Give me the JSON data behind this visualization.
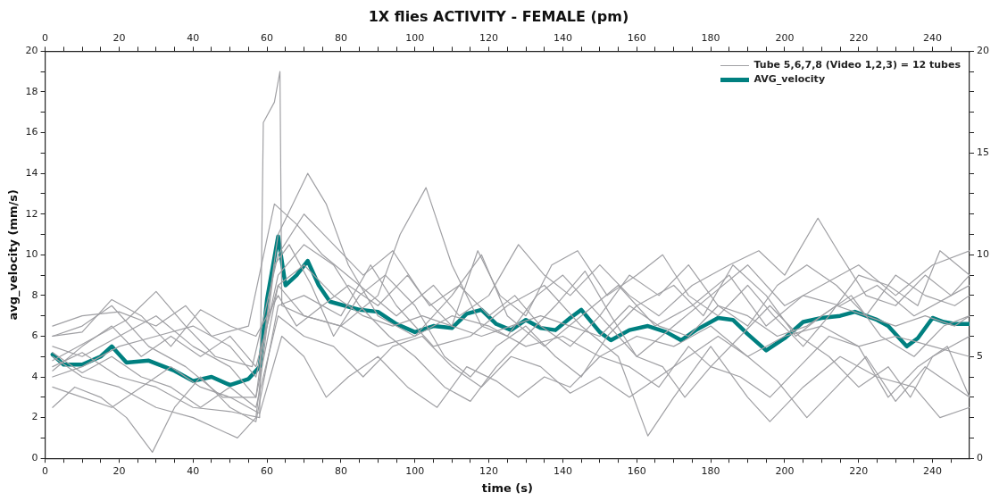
{
  "chart_data": {
    "type": "line",
    "title": "1X flies ACTIVITY - FEMALE (pm)",
    "xlabel": "time (s)",
    "ylabel": "avg_velocity (mm/s)",
    "xlim": [
      0,
      250
    ],
    "x2lim": [
      0,
      250
    ],
    "ylim": [
      0,
      20
    ],
    "y2lim": [
      0,
      20
    ],
    "xticks": [
      0,
      {
        "value": 5,
        "label": null
      },
      {
        "value": 10,
        "label": null
      },
      {
        "value": 15,
        "label": null
      },
      20,
      {
        "value": 25,
        "label": null
      },
      {
        "value": 30,
        "label": null
      },
      {
        "value": 35,
        "label": null
      },
      40,
      {
        "value": 45,
        "label": null
      },
      {
        "value": 50,
        "label": null
      },
      {
        "value": 55,
        "label": null
      },
      60,
      {
        "value": 65,
        "label": null
      },
      {
        "value": 70,
        "label": null
      },
      {
        "value": 75,
        "label": null
      },
      80,
      {
        "value": 85,
        "label": null
      },
      {
        "value": 90,
        "label": null
      },
      {
        "value": 95,
        "label": null
      },
      100,
      {
        "value": 105,
        "label": null
      },
      {
        "value": 110,
        "label": null
      },
      {
        "value": 115,
        "label": null
      },
      120,
      {
        "value": 125,
        "label": null
      },
      {
        "value": 130,
        "label": null
      },
      {
        "value": 135,
        "label": null
      },
      140,
      {
        "value": 145,
        "label": null
      },
      {
        "value": 150,
        "label": null
      },
      {
        "value": 155,
        "label": null
      },
      160,
      {
        "value": 165,
        "label": null
      },
      {
        "value": 170,
        "label": null
      },
      {
        "value": 175,
        "label": null
      },
      180,
      {
        "value": 185,
        "label": null
      },
      {
        "value": 190,
        "label": null
      },
      {
        "value": 195,
        "label": null
      },
      200,
      {
        "value": 205,
        "label": null
      },
      {
        "value": 210,
        "label": null
      },
      {
        "value": 215,
        "label": null
      },
      220,
      {
        "value": 225,
        "label": null
      },
      {
        "value": 230,
        "label": null
      },
      {
        "value": 235,
        "label": null
      },
      240,
      {
        "value": 245,
        "label": null
      }
    ],
    "x2ticks": [
      0,
      {
        "value": 5,
        "label": null
      },
      {
        "value": 10,
        "label": null
      },
      {
        "value": 15,
        "label": null
      },
      20,
      {
        "value": 25,
        "label": null
      },
      {
        "value": 30,
        "label": null
      },
      {
        "value": 35,
        "label": null
      },
      40,
      {
        "value": 45,
        "label": null
      },
      {
        "value": 50,
        "label": null
      },
      {
        "value": 55,
        "label": null
      },
      60,
      {
        "value": 65,
        "label": null
      },
      {
        "value": 70,
        "label": null
      },
      {
        "value": 75,
        "label": null
      },
      80,
      {
        "value": 85,
        "label": null
      },
      {
        "value": 90,
        "label": null
      },
      {
        "value": 95,
        "label": null
      },
      100,
      {
        "value": 105,
        "label": null
      },
      {
        "value": 110,
        "label": null
      },
      {
        "value": 115,
        "label": null
      },
      120,
      {
        "value": 125,
        "label": null
      },
      {
        "value": 130,
        "label": null
      },
      {
        "value": 135,
        "label": null
      },
      140,
      {
        "value": 145,
        "label": null
      },
      {
        "value": 150,
        "label": null
      },
      {
        "value": 155,
        "label": null
      },
      160,
      {
        "value": 165,
        "label": null
      },
      {
        "value": 170,
        "label": null
      },
      {
        "value": 175,
        "label": null
      },
      180,
      {
        "value": 185,
        "label": null
      },
      {
        "value": 190,
        "label": null
      },
      {
        "value": 195,
        "label": null
      },
      200,
      {
        "value": 205,
        "label": null
      },
      {
        "value": 210,
        "label": null
      },
      {
        "value": 215,
        "label": null
      },
      220,
      {
        "value": 225,
        "label": null
      },
      {
        "value": 230,
        "label": null
      },
      {
        "value": 235,
        "label": null
      },
      240,
      {
        "value": 245,
        "label": null
      }
    ],
    "yticks": [
      0,
      {
        "value": 1,
        "label": null
      },
      2,
      {
        "value": 3,
        "label": null
      },
      4,
      {
        "value": 5,
        "label": null
      },
      6,
      {
        "value": 7,
        "label": null
      },
      8,
      {
        "value": 9,
        "label": null
      },
      10,
      {
        "value": 11,
        "label": null
      },
      12,
      {
        "value": 13,
        "label": null
      },
      14,
      {
        "value": 15,
        "label": null
      },
      16,
      {
        "value": 17,
        "label": null
      },
      18,
      {
        "value": 19,
        "label": null
      },
      20
    ],
    "y2ticks": [
      0,
      {
        "value": 1,
        "label": null
      },
      {
        "value": 2,
        "label": null
      },
      {
        "value": 3,
        "label": null
      },
      {
        "value": 4,
        "label": null
      },
      5,
      {
        "value": 6,
        "label": null
      },
      {
        "value": 7,
        "label": null
      },
      {
        "value": 8,
        "label": null
      },
      {
        "value": 9,
        "label": null
      },
      10,
      {
        "value": 11,
        "label": null
      },
      {
        "value": 12,
        "label": null
      },
      {
        "value": 13,
        "label": null
      },
      {
        "value": 14,
        "label": null
      },
      15,
      {
        "value": 16,
        "label": null
      },
      {
        "value": 17,
        "label": null
      },
      {
        "value": 18,
        "label": null
      },
      {
        "value": 19,
        "label": null
      },
      20
    ],
    "legend": "top right",
    "marker": "none",
    "line_style": "solid",
    "series": [
      {
        "name": "Tube 5,6,7,8 (Video 1,2,3) = 12 tubes",
        "color": "#a0a0a4",
        "x": [
          2,
          10,
          20,
          30,
          40,
          50,
          58,
          59,
          62,
          63.5,
          64,
          70,
          80,
          90,
          100,
          110,
          120,
          130,
          140,
          150,
          160,
          170,
          180,
          190,
          200,
          210,
          220,
          230,
          240,
          250
        ],
        "values": [
          4.5,
          5.2,
          4.0,
          3.5,
          2.5,
          2.3,
          2.0,
          16.5,
          17.5,
          19.0,
          7.5,
          7.0,
          6.5,
          5.5,
          6.0,
          7.0,
          6.5,
          5.5,
          6.0,
          5.0,
          6.0,
          5.5,
          6.5,
          5.0,
          6.0,
          6.5,
          5.5,
          6.0,
          5.5,
          5.0
        ]
      },
      {
        "color": "#a0a0a4",
        "x": [
          2,
          10,
          18,
          28,
          38,
          48,
          57,
          63,
          71,
          76,
          82,
          90,
          100,
          110,
          118,
          125,
          135,
          145,
          155,
          165,
          175,
          185,
          195,
          205,
          215,
          225,
          235,
          245,
          250
        ],
        "values": [
          6.0,
          6.5,
          7.5,
          5.5,
          4.5,
          3.0,
          3.0,
          11,
          14.0,
          12.5,
          9.5,
          7.0,
          6.0,
          8.0,
          10.0,
          7.0,
          5.5,
          7.0,
          8.5,
          6.5,
          7.5,
          9.0,
          6.5,
          8.0,
          7.5,
          8.5,
          7.0,
          8.0,
          8.5
        ]
      },
      {
        "color": "#a0a0a4",
        "x": [
          2,
          10,
          20,
          30,
          40,
          50,
          57,
          63,
          70,
          80,
          90,
          96,
          103,
          110,
          118,
          125,
          133,
          140,
          150,
          160,
          170,
          180,
          190,
          200,
          210,
          220,
          230,
          240,
          250
        ],
        "values": [
          5.5,
          5.0,
          6.0,
          7.0,
          5.5,
          4.5,
          3.0,
          8.5,
          7.0,
          6.5,
          8.0,
          11.0,
          13.3,
          9.5,
          6.5,
          6.0,
          8.0,
          9.0,
          7.0,
          5.0,
          6.5,
          8.0,
          9.5,
          7.5,
          8.5,
          9.5,
          8.0,
          9.5,
          10.2
        ]
      },
      {
        "color": "#a0a0a4",
        "x": [
          2,
          8,
          15,
          22,
          29,
          35,
          42,
          50,
          57,
          63,
          70,
          80,
          88,
          95,
          105,
          115,
          125,
          135,
          145,
          155,
          163,
          170,
          180,
          190,
          196,
          205,
          215,
          225,
          235,
          242,
          250
        ],
        "values": [
          2.5,
          3.5,
          3.0,
          2.0,
          0.3,
          2.5,
          4.0,
          2.5,
          1.8,
          7.5,
          8.0,
          7.0,
          9.5,
          7.5,
          5.5,
          6.0,
          7.5,
          8.5,
          6.5,
          5.0,
          1.1,
          3.0,
          5.5,
          3.0,
          1.8,
          3.5,
          5.0,
          4.0,
          3.5,
          2.0,
          2.5
        ]
      },
      {
        "color": "#a0a0a4",
        "x": [
          2,
          10,
          20,
          30,
          40,
          46,
          52,
          57,
          62,
          66,
          72,
          78,
          85,
          92,
          100,
          108,
          115,
          122,
          130,
          138,
          145,
          152,
          160,
          170,
          178,
          186,
          195,
          203,
          210,
          218,
          226,
          235,
          243,
          250
        ],
        "values": [
          5.0,
          4.0,
          3.5,
          2.5,
          2.0,
          1.5,
          1.0,
          2.0,
          9.5,
          10.5,
          8.5,
          6.0,
          8.0,
          9.0,
          7.5,
          5.0,
          4.0,
          5.5,
          6.5,
          5.0,
          4.0,
          6.0,
          7.5,
          8.5,
          7.0,
          9.5,
          8.0,
          6.0,
          7.0,
          8.0,
          6.0,
          5.0,
          6.5,
          7.0
        ]
      },
      {
        "color": "#a0a0a4",
        "x": [
          2,
          10,
          20,
          30,
          38,
          45,
          55,
          62,
          68,
          75,
          85,
          95,
          105,
          112,
          120,
          128,
          135,
          142,
          150,
          158,
          166,
          175,
          185,
          193,
          200,
          209,
          215,
          222,
          230,
          238,
          245,
          250
        ],
        "values": [
          6.5,
          7.0,
          7.2,
          6.5,
          7.5,
          6.0,
          6.5,
          12.5,
          11.5,
          10.0,
          8.5,
          7.0,
          8.5,
          7.0,
          8.0,
          10.5,
          9.0,
          8.0,
          9.5,
          8.0,
          7.0,
          8.5,
          9.5,
          10.2,
          9.0,
          11.8,
          10.0,
          8.0,
          7.5,
          9.0,
          8.0,
          9.0
        ]
      },
      {
        "color": "#a0a0a4",
        "x": [
          2,
          10,
          20,
          30,
          40,
          50,
          57,
          63,
          70,
          78,
          85,
          93,
          100,
          108,
          115,
          122,
          130,
          138,
          146,
          153,
          160,
          167,
          173,
          180,
          188,
          196,
          204,
          212,
          220,
          228,
          234,
          240,
          250
        ],
        "values": [
          4.0,
          4.5,
          5.5,
          6.0,
          6.5,
          5.5,
          4.0,
          9.0,
          10.5,
          9.5,
          7.5,
          6.0,
          5.0,
          3.5,
          2.8,
          4.5,
          6.0,
          7.5,
          9.2,
          7.0,
          5.0,
          4.5,
          3.0,
          4.5,
          6.0,
          7.5,
          6.0,
          5.0,
          3.5,
          4.5,
          3.0,
          5.0,
          6.0
        ]
      },
      {
        "color": "#a0a0a4",
        "x": [
          2,
          12,
          22,
          30,
          38,
          46,
          56,
          63,
          70,
          78,
          86,
          94,
          102,
          110,
          117,
          123,
          130,
          137,
          144,
          152,
          160,
          167,
          174,
          182,
          190,
          197,
          205,
          212,
          220,
          228,
          236,
          242,
          250
        ],
        "values": [
          4.8,
          5.8,
          6.8,
          8.2,
          6.5,
          5.0,
          4.5,
          10.0,
          12.0,
          10.5,
          9.0,
          10.2,
          8.0,
          6.5,
          10.2,
          8.0,
          7.0,
          9.5,
          10.2,
          8.0,
          9.0,
          10.0,
          8.0,
          7.0,
          8.5,
          7.0,
          5.5,
          7.0,
          9.0,
          8.5,
          7.5,
          10.2,
          9.0
        ]
      },
      {
        "color": "#a0a0a4",
        "x": [
          2,
          10,
          18,
          26,
          34,
          42,
          50,
          58,
          64,
          70,
          76,
          82,
          90,
          98,
          106,
          114,
          122,
          128,
          135,
          142,
          150,
          158,
          166,
          174,
          180,
          188,
          196,
          204,
          212,
          220,
          228,
          236,
          244,
          250
        ],
        "values": [
          3.5,
          3.0,
          2.5,
          3.5,
          4.5,
          3.5,
          3.0,
          2.2,
          6.0,
          5.0,
          3.0,
          4.0,
          5.0,
          3.5,
          2.5,
          4.5,
          3.8,
          3.0,
          4.0,
          3.5,
          5.0,
          4.5,
          3.5,
          5.5,
          4.5,
          4.0,
          3.0,
          4.5,
          6.0,
          5.5,
          3.0,
          4.5,
          5.5,
          3.0
        ]
      },
      {
        "color": "#a0a0a4",
        "x": [
          2,
          10,
          18,
          26,
          34,
          42,
          50,
          57,
          63,
          68,
          75,
          82,
          90,
          98,
          104,
          112,
          120,
          127,
          134,
          142,
          150,
          158,
          166,
          174,
          182,
          190,
          198,
          206,
          214,
          222,
          230,
          238,
          246,
          250
        ],
        "values": [
          6.0,
          6.2,
          7.8,
          7.0,
          5.5,
          7.3,
          6.5,
          6.0,
          8.0,
          6.5,
          7.5,
          8.5,
          7.5,
          9.0,
          7.5,
          8.5,
          7.0,
          8.0,
          6.5,
          5.5,
          7.0,
          9.0,
          8.0,
          9.5,
          7.5,
          6.5,
          8.5,
          9.5,
          8.5,
          7.0,
          9.0,
          8.0,
          7.5,
          8.0
        ]
      },
      {
        "color": "#a0a0a4",
        "x": [
          2,
          10,
          18,
          26,
          34,
          42,
          50,
          57,
          63,
          70,
          78,
          86,
          94,
          102,
          110,
          118,
          126,
          134,
          142,
          150,
          158,
          166,
          174,
          182,
          190,
          198,
          206,
          214,
          222,
          230,
          238,
          246,
          250
        ],
        "values": [
          5.2,
          4.2,
          5.0,
          4.0,
          3.5,
          2.5,
          3.5,
          2.5,
          7.0,
          6.0,
          5.5,
          4.0,
          5.5,
          6.0,
          4.5,
          3.5,
          5.0,
          4.5,
          3.2,
          4.0,
          3.0,
          4.0,
          5.0,
          6.0,
          5.0,
          3.8,
          2.0,
          3.5,
          5.0,
          2.8,
          4.5,
          3.5,
          3.0
        ]
      },
      {
        "color": "#a0a0a4",
        "x": [
          2,
          10,
          18,
          26,
          34,
          42,
          50,
          57,
          63,
          70,
          78,
          86,
          94,
          102,
          110,
          118,
          126,
          134,
          142,
          150,
          158,
          166,
          174,
          182,
          190,
          198,
          206,
          214,
          222,
          230,
          238,
          246,
          250
        ],
        "values": [
          4.3,
          5.5,
          6.5,
          5.0,
          6.0,
          5.0,
          6.0,
          4.5,
          8.5,
          9.5,
          8.0,
          7.0,
          6.5,
          7.0,
          6.5,
          6.0,
          6.5,
          7.0,
          6.5,
          6.0,
          7.5,
          6.5,
          6.0,
          7.5,
          7.0,
          6.0,
          6.5,
          7.5,
          7.0,
          6.5,
          7.0,
          6.5,
          7.0
        ]
      },
      {
        "name": "AVG_velocity",
        "color": "#008080",
        "x": [
          2,
          5,
          10,
          15,
          18,
          22,
          28,
          35,
          40,
          45,
          50,
          55,
          58,
          60,
          63,
          65,
          68,
          71,
          74,
          77,
          85,
          90,
          95,
          100,
          105,
          110,
          114,
          118,
          122,
          126,
          130,
          134,
          138,
          142,
          145,
          150,
          153,
          158,
          163,
          168,
          172,
          176,
          182,
          186,
          190,
          195,
          200,
          205,
          210,
          215,
          219,
          225,
          228,
          233,
          236,
          240,
          243,
          246,
          250
        ],
        "values": [
          5.1,
          4.6,
          4.6,
          5.0,
          5.5,
          4.7,
          4.8,
          4.3,
          3.8,
          4.0,
          3.6,
          3.9,
          4.5,
          7.8,
          10.9,
          8.5,
          9.0,
          9.7,
          8.5,
          7.7,
          7.3,
          7.2,
          6.6,
          6.2,
          6.5,
          6.4,
          7.1,
          7.3,
          6.6,
          6.3,
          6.8,
          6.4,
          6.3,
          6.9,
          7.3,
          6.2,
          5.8,
          6.3,
          6.5,
          6.2,
          5.8,
          6.3,
          6.9,
          6.8,
          6.1,
          5.3,
          5.9,
          6.7,
          6.9,
          7.0,
          7.2,
          6.8,
          6.5,
          5.5,
          5.9,
          6.9,
          6.7,
          6.6,
          6.6
        ]
      }
    ]
  }
}
